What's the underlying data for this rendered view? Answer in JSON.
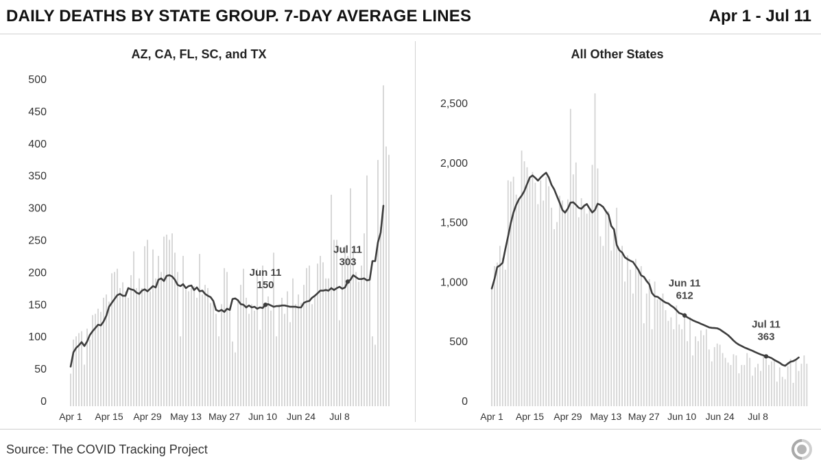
{
  "header": {
    "title": "DAILY DEATHS BY STATE GROUP. 7-DAY AVERAGE LINES",
    "date_range": "Apr 1 - Jul 11"
  },
  "footer": {
    "source": "Source: The COVID Tracking Project"
  },
  "colors": {
    "bar": "#d3d3d3",
    "line": "#3d3d3d",
    "tick_text": "#333333",
    "annotation": "#444444"
  },
  "chart_data": [
    {
      "type": "bar",
      "title": "AZ, CA, FL, SC, and TX",
      "x_start": "Apr 1",
      "x_ticks": [
        "Apr 1",
        "Apr 15",
        "Apr 29",
        "May 13",
        "May 27",
        "Jun 10",
        "Jun 24",
        "Jul 8"
      ],
      "y_ticks": [
        "0",
        "50",
        "100",
        "150",
        "200",
        "250",
        "300",
        "350",
        "400",
        "450",
        "500"
      ],
      "ylim": [
        0,
        500
      ],
      "series": [
        {
          "type": "bar",
          "values": [
            42,
            95,
            100,
            105,
            108,
            56,
            112,
            95,
            133,
            135,
            143,
            138,
            160,
            165,
            154,
            198,
            200,
            205,
            175,
            184,
            170,
            160,
            195,
            232,
            175,
            190,
            175,
            240,
            250,
            170,
            235,
            190,
            225,
            200,
            255,
            258,
            250,
            260,
            230,
            200,
            100,
            225,
            173,
            170,
            175,
            178,
            160,
            228,
            165,
            180,
            175,
            152,
            155,
            135,
            100,
            150,
            206,
            200,
            145,
            92,
            75,
            155,
            180,
            205,
            160,
            135,
            150,
            140,
            205,
            110,
            210,
            150,
            162,
            140,
            230,
            100,
            150,
            160,
            135,
            170,
            122,
            190,
            150,
            165,
            152,
            180,
            206,
            210,
            150,
            162,
            213,
            225,
            215,
            190,
            190,
            320,
            250,
            250,
            125,
            210,
            240,
            225,
            330,
            238,
            200,
            185,
            210,
            260,
            350,
            190,
            100,
            87,
            374,
            270,
            490,
            395,
            382
          ]
        },
        {
          "type": "line",
          "values": [
            53,
            75,
            82,
            86,
            91,
            85,
            92,
            102,
            108,
            113,
            118,
            117,
            123,
            132,
            146,
            152,
            158,
            164,
            166,
            163,
            163,
            175,
            173,
            172,
            168,
            166,
            171,
            173,
            170,
            174,
            178,
            176,
            188,
            190,
            186,
            194,
            195,
            193,
            188,
            180,
            178,
            181,
            175,
            178,
            179,
            172,
            176,
            170,
            171,
            166,
            163,
            161,
            155,
            141,
            139,
            141,
            138,
            143,
            141,
            158,
            159,
            156,
            150,
            149,
            145,
            148,
            145,
            146,
            143,
            145,
            144,
            149,
            150,
            148,
            146,
            147,
            147,
            148,
            148,
            147,
            146,
            146,
            146,
            145,
            145,
            152,
            154,
            155,
            160,
            163,
            167,
            171,
            171,
            172,
            171,
            175,
            172,
            175,
            177,
            174,
            176,
            185,
            188,
            195,
            192,
            189,
            189,
            190,
            187,
            188,
            217,
            217,
            246,
            261,
            303
          ],
          "annotations": [
            {
              "date": "Jun 11",
              "value": "150"
            },
            {
              "date": "Jul 11",
              "value": "303"
            }
          ]
        }
      ]
    },
    {
      "type": "bar",
      "title": "All Other States",
      "x_start": "Apr 1",
      "x_ticks": [
        "Apr 1",
        "Apr 15",
        "Apr 29",
        "May 13",
        "May 27",
        "Jun 10",
        "Jun 24",
        "Jul 8"
      ],
      "y_ticks": [
        "0",
        "500",
        "1,000",
        "1,500",
        "2,000",
        "2,500"
      ],
      "ylim": [
        0,
        2500
      ],
      "series": [
        {
          "type": "bar",
          "values": [
            940,
            1130,
            1160,
            1300,
            1200,
            1100,
            1850,
            1840,
            1880,
            1730,
            1700,
            2100,
            2010,
            1960,
            1870,
            1920,
            1830,
            1650,
            1850,
            1680,
            1880,
            1800,
            1620,
            1440,
            1500,
            1720,
            1680,
            1600,
            1690,
            2450,
            1900,
            2000,
            1540,
            1700,
            1650,
            1570,
            1600,
            1980,
            2580,
            1950,
            1380,
            1300,
            1600,
            1590,
            1260,
            1450,
            1620,
            1250,
            1300,
            1000,
            1220,
            1100,
            900,
            1190,
            1100,
            1130,
            650,
            900,
            1020,
            600,
            1000,
            850,
            850,
            900,
            760,
            670,
            700,
            600,
            800,
            640,
            600,
            720,
            500,
            700,
            380,
            540,
            500,
            590,
            550,
            600,
            430,
            330,
            450,
            480,
            470,
            400,
            360,
            320,
            300,
            390,
            380,
            230,
            300,
            300,
            400,
            360,
            210,
            280,
            310,
            250,
            380,
            350,
            300,
            330,
            340,
            160,
            280,
            200,
            180,
            290,
            350,
            150,
            350,
            250,
            310,
            380,
            310
          ]
        },
        {
          "type": "line",
          "values": [
            942,
            1022,
            1121,
            1136,
            1158,
            1273,
            1380,
            1491,
            1581,
            1644,
            1691,
            1722,
            1761,
            1819,
            1874,
            1891,
            1871,
            1848,
            1874,
            1895,
            1914,
            1873,
            1812,
            1773,
            1717,
            1662,
            1601,
            1579,
            1613,
            1663,
            1666,
            1644,
            1620,
            1611,
            1636,
            1651,
            1613,
            1580,
            1602,
            1654,
            1644,
            1626,
            1591,
            1560,
            1467,
            1438,
            1307,
            1262,
            1244,
            1204,
            1188,
            1175,
            1165,
            1131,
            1098,
            1052,
            1040,
            1005,
            977,
            903,
            877,
            872,
            856,
            838,
            824,
            817,
            798,
            783,
            760,
            736,
            728,
            716,
            700,
            688,
            675,
            665,
            656,
            646,
            636,
            626,
            616,
            612,
            610,
            608,
            598,
            582,
            566,
            550,
            528,
            505,
            485,
            470,
            459,
            447,
            438,
            428,
            419,
            408,
            398,
            388,
            381,
            372,
            367,
            358,
            343,
            330,
            318,
            301,
            293,
            311,
            327,
            333,
            345,
            363
          ],
          "annotations": [
            {
              "date": "Jun 11",
              "value": "612"
            },
            {
              "date": "Jul 11",
              "value": "363"
            }
          ]
        }
      ]
    }
  ]
}
